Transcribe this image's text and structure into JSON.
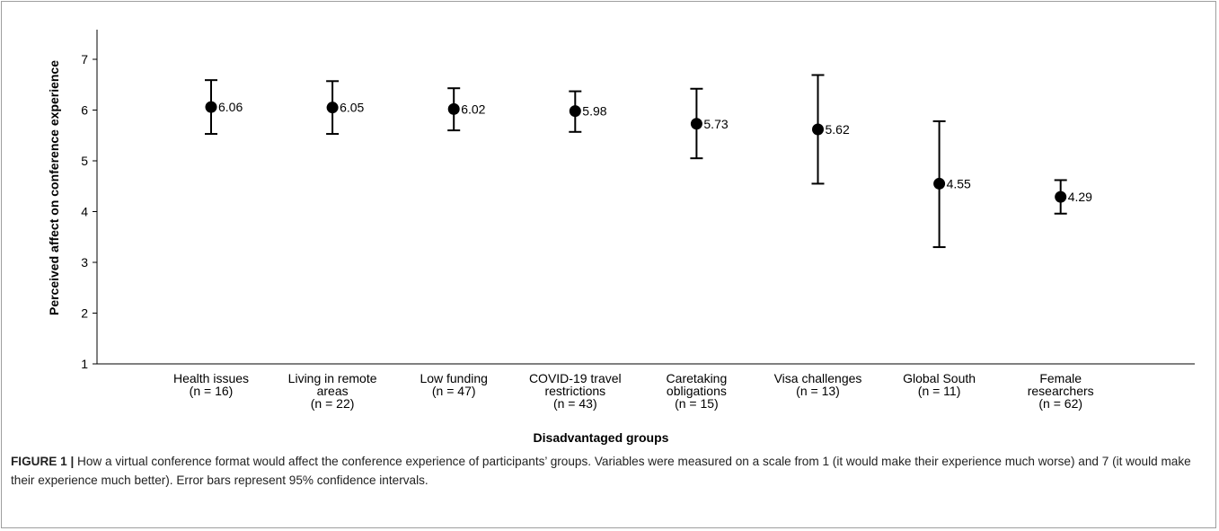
{
  "chart_data": {
    "type": "scatter",
    "title": "",
    "xlabel": "Disadvantaged groups",
    "ylabel": "Perceived affect on conference experience",
    "ylim": [
      1,
      7.6
    ],
    "yticks": [
      1,
      2,
      3,
      4,
      5,
      6,
      7
    ],
    "grid": false,
    "legend": "none",
    "categories": [
      [
        "Health issues",
        "(n = 16)"
      ],
      [
        "Living in remote",
        "areas",
        "(n = 22)"
      ],
      [
        "Low funding",
        "(n = 47)"
      ],
      [
        "COVID-19 travel",
        "restrictions",
        "(n = 43)"
      ],
      [
        "Caretaking",
        "obligations",
        "(n = 15)"
      ],
      [
        "Visa challenges",
        "(n = 13)"
      ],
      [
        "Global South",
        "(n = 11)"
      ],
      [
        "Female",
        "researchers",
        "(n = 62)"
      ]
    ],
    "values": [
      6.06,
      6.05,
      6.02,
      5.98,
      5.73,
      5.62,
      4.55,
      4.29
    ],
    "value_labels": [
      "6.06",
      "6.05",
      "6.02",
      "5.98",
      "5.73",
      "5.62",
      "4.55",
      "4.29"
    ],
    "ci_lower": [
      5.53,
      5.53,
      5.6,
      5.57,
      5.05,
      4.55,
      3.3,
      3.96
    ],
    "ci_upper": [
      6.59,
      6.57,
      6.43,
      6.37,
      6.42,
      6.69,
      5.78,
      4.62
    ],
    "colors": {
      "marker": "#000000",
      "axis": "#000000"
    }
  },
  "caption": {
    "label": "FIGURE 1 |",
    "text": " How a virtual conference format would affect the conference experience of participants’ groups. Variables were measured on a scale from 1 (it would make their experience much worse) and 7 (it would make their experience much better). Error bars represent 95% confidence intervals."
  }
}
